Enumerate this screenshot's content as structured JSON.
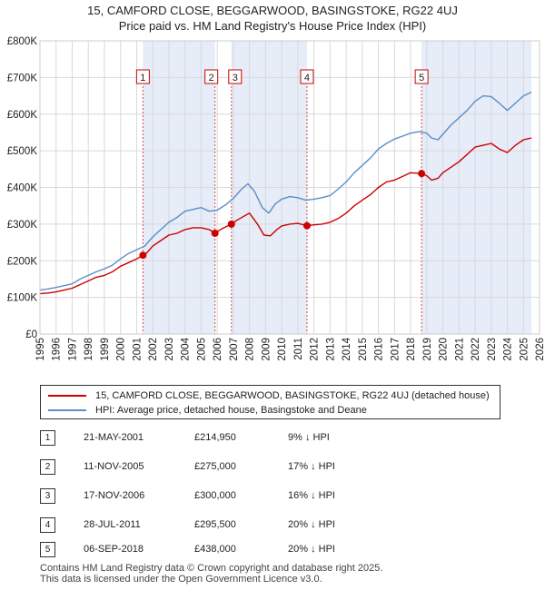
{
  "chart_data": {
    "type": "line",
    "title": "15, CAMFORD CLOSE, BEGGARWOOD, BASINGSTOKE, RG22 4UJ",
    "subtitle": "Price paid vs. HM Land Registry's House Price Index (HPI)",
    "xlim": [
      1995,
      2026
    ],
    "ylim": [
      0,
      800000
    ],
    "y_ticks": [
      0,
      100000,
      200000,
      300000,
      400000,
      500000,
      600000,
      700000,
      800000
    ],
    "y_tick_labels": [
      "£0",
      "£100K",
      "£200K",
      "£300K",
      "£400K",
      "£500K",
      "£600K",
      "£700K",
      "£800K"
    ],
    "x_ticks": [
      1995,
      1996,
      1997,
      1998,
      1999,
      2000,
      2001,
      2002,
      2003,
      2004,
      2005,
      2006,
      2007,
      2008,
      2009,
      2010,
      2011,
      2012,
      2013,
      2014,
      2015,
      2016,
      2017,
      2018,
      2019,
      2020,
      2021,
      2022,
      2023,
      2024,
      2025,
      2026
    ],
    "x_tick_labels": [
      "1995",
      "1996",
      "1997",
      "1998",
      "1999",
      "2000",
      "2001",
      "2002",
      "2003",
      "2004",
      "2005",
      "2006",
      "2007",
      "2008",
      "2009",
      "2010",
      "2011",
      "2012",
      "2013",
      "2014",
      "2015",
      "2016",
      "2017",
      "2018",
      "2019",
      "2020",
      "2021",
      "2022",
      "2023",
      "2024",
      "2025",
      "2026"
    ],
    "grid": true,
    "shaded_periods": [
      [
        2001.39,
        2005.86
      ],
      [
        2006.88,
        2011.57
      ],
      [
        2018.68,
        2025.5
      ]
    ],
    "series": [
      {
        "name": "15, CAMFORD CLOSE, BEGGARWOOD, BASINGSTOKE, RG22 4UJ (detached house)",
        "color": "#cc0000",
        "x": [
          1995.0,
          1995.5,
          1996.0,
          1996.5,
          1997.0,
          1997.5,
          1998.0,
          1998.5,
          1999.0,
          1999.5,
          2000.0,
          2000.5,
          2001.0,
          2001.39,
          2001.6,
          2002.0,
          2002.5,
          2003.0,
          2003.5,
          2004.0,
          2004.5,
          2005.0,
          2005.5,
          2005.86,
          2006.2,
          2006.5,
          2006.88,
          2007.2,
          2007.6,
          2008.0,
          2008.5,
          2008.9,
          2009.3,
          2009.7,
          2010.0,
          2010.5,
          2011.0,
          2011.57,
          2012.0,
          2012.5,
          2013.0,
          2013.5,
          2014.0,
          2014.5,
          2015.0,
          2015.5,
          2016.0,
          2016.5,
          2017.0,
          2017.5,
          2018.0,
          2018.68,
          2019.0,
          2019.3,
          2019.7,
          2020.0,
          2020.5,
          2021.0,
          2021.5,
          2022.0,
          2022.5,
          2023.0,
          2023.5,
          2024.0,
          2024.5,
          2025.0,
          2025.5
        ],
        "y": [
          110000,
          112000,
          115000,
          120000,
          125000,
          135000,
          145000,
          155000,
          160000,
          170000,
          185000,
          195000,
          205000,
          214950,
          220000,
          240000,
          255000,
          270000,
          275000,
          285000,
          290000,
          290000,
          285000,
          275000,
          285000,
          292000,
          300000,
          310000,
          320000,
          330000,
          300000,
          270000,
          268000,
          285000,
          295000,
          300000,
          302000,
          295500,
          298000,
          300000,
          305000,
          315000,
          330000,
          350000,
          365000,
          380000,
          400000,
          415000,
          420000,
          430000,
          440000,
          438000,
          432000,
          420000,
          425000,
          440000,
          455000,
          470000,
          490000,
          510000,
          515000,
          520000,
          505000,
          495000,
          515000,
          530000,
          535000
        ]
      },
      {
        "name": "HPI: Average price, detached house, Basingstoke and Deane",
        "color": "#5b8fc7",
        "x": [
          1995.0,
          1995.5,
          1996.0,
          1996.5,
          1997.0,
          1997.5,
          1998.0,
          1998.5,
          1999.0,
          1999.5,
          2000.0,
          2000.5,
          2001.0,
          2001.5,
          2002.0,
          2002.5,
          2003.0,
          2003.5,
          2004.0,
          2004.5,
          2005.0,
          2005.5,
          2006.0,
          2006.5,
          2007.0,
          2007.5,
          2007.9,
          2008.3,
          2008.8,
          2009.2,
          2009.6,
          2010.0,
          2010.5,
          2011.0,
          2011.5,
          2012.0,
          2012.5,
          2013.0,
          2013.5,
          2014.0,
          2014.5,
          2015.0,
          2015.5,
          2016.0,
          2016.5,
          2017.0,
          2017.5,
          2018.0,
          2018.5,
          2019.0,
          2019.3,
          2019.7,
          2020.0,
          2020.5,
          2021.0,
          2021.5,
          2022.0,
          2022.5,
          2023.0,
          2023.5,
          2024.0,
          2024.5,
          2025.0,
          2025.5
        ],
        "y": [
          120000,
          123000,
          127000,
          132000,
          137000,
          150000,
          160000,
          170000,
          178000,
          188000,
          205000,
          220000,
          230000,
          240000,
          265000,
          285000,
          305000,
          318000,
          335000,
          340000,
          345000,
          335000,
          338000,
          352000,
          370000,
          395000,
          410000,
          390000,
          345000,
          330000,
          355000,
          368000,
          375000,
          372000,
          365000,
          368000,
          372000,
          378000,
          395000,
          415000,
          440000,
          460000,
          480000,
          505000,
          520000,
          532000,
          540000,
          548000,
          552000,
          548000,
          535000,
          530000,
          545000,
          570000,
          590000,
          610000,
          635000,
          650000,
          648000,
          630000,
          610000,
          630000,
          650000,
          660000
        ]
      }
    ],
    "transactions": [
      {
        "num": "1",
        "date": "21-MAY-2001",
        "price": "£214,950",
        "hpi": "9% ↓ HPI",
        "x": 2001.39,
        "y": 214950
      },
      {
        "num": "2",
        "date": "11-NOV-2005",
        "price": "£275,000",
        "hpi": "17% ↓ HPI",
        "x": 2005.86,
        "y": 275000
      },
      {
        "num": "3",
        "date": "17-NOV-2006",
        "price": "£300,000",
        "hpi": "16% ↓ HPI",
        "x": 2006.88,
        "y": 300000
      },
      {
        "num": "4",
        "date": "28-JUL-2011",
        "price": "£295,500",
        "hpi": "20% ↓ HPI",
        "x": 2011.57,
        "y": 295500
      },
      {
        "num": "5",
        "date": "06-SEP-2018",
        "price": "£438,000",
        "hpi": "20% ↓ HPI",
        "x": 2018.68,
        "y": 438000
      }
    ]
  },
  "legend": {
    "property_label": "15, CAMFORD CLOSE, BEGGARWOOD, BASINGSTOKE, RG22 4UJ (detached house)",
    "hpi_label": "HPI: Average price, detached house, Basingstoke and Deane",
    "property_color": "#cc0000",
    "hpi_color": "#5b8fc7"
  },
  "footer": {
    "line1": "Contains HM Land Registry data © Crown copyright and database right 2025.",
    "line2": "This data is licensed under the Open Government Licence v3.0."
  }
}
